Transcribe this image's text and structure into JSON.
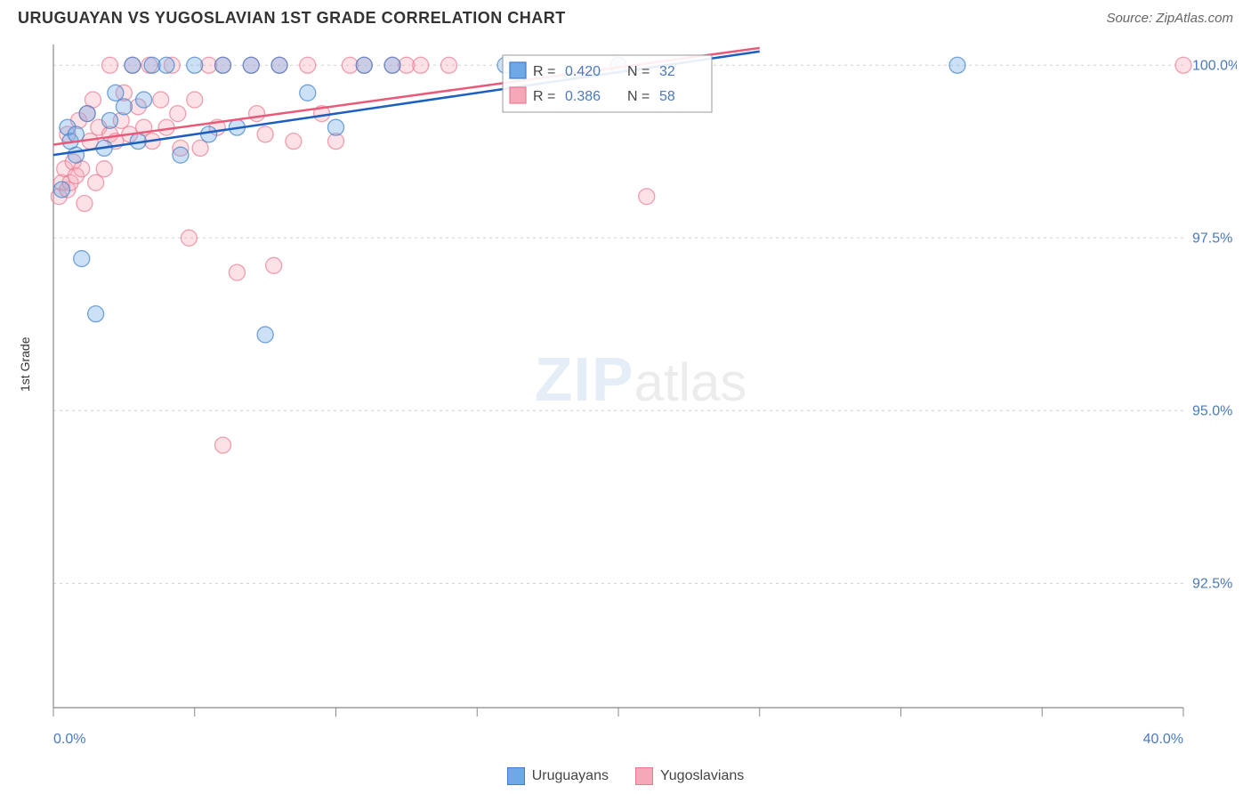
{
  "header": {
    "title": "URUGUAYAN VS YUGOSLAVIAN 1ST GRADE CORRELATION CHART",
    "source": "Source: ZipAtlas.com"
  },
  "chart": {
    "type": "scatter",
    "ylabel": "1st Grade",
    "xlim": [
      0,
      40
    ],
    "ylim": [
      90.7,
      100.3
    ],
    "x_ticks": [
      0,
      5,
      10,
      15,
      20,
      25,
      30,
      35,
      40
    ],
    "x_tick_labels_visible": {
      "0": "0.0%",
      "40": "40.0%"
    },
    "y_ticks": [
      92.5,
      95.0,
      97.5,
      100.0
    ],
    "y_tick_labels": [
      "92.5%",
      "95.0%",
      "97.5%",
      "100.0%"
    ],
    "grid_color": "#d0d0d0",
    "axis_color": "#888888",
    "background_color": "#ffffff",
    "tick_label_color": "#4a7abc",
    "marker_radius": 9,
    "marker_opacity": 0.35,
    "series": [
      {
        "name": "Uruguayans",
        "fill": "#6fa8e6",
        "stroke": "#3d7fc9",
        "line_color": "#1c5fc1",
        "points": [
          [
            0.3,
            98.2
          ],
          [
            0.5,
            99.1
          ],
          [
            0.6,
            98.9
          ],
          [
            0.8,
            98.7
          ],
          [
            0.8,
            99.0
          ],
          [
            1.0,
            97.2
          ],
          [
            1.2,
            99.3
          ],
          [
            1.5,
            96.4
          ],
          [
            1.8,
            98.8
          ],
          [
            2.0,
            99.2
          ],
          [
            2.2,
            99.6
          ],
          [
            2.5,
            99.4
          ],
          [
            2.8,
            100.0
          ],
          [
            3.0,
            98.9
          ],
          [
            3.2,
            99.5
          ],
          [
            3.5,
            100.0
          ],
          [
            4.0,
            100.0
          ],
          [
            4.5,
            98.7
          ],
          [
            5.0,
            100.0
          ],
          [
            5.5,
            99.0
          ],
          [
            6.0,
            100.0
          ],
          [
            6.5,
            99.1
          ],
          [
            7.0,
            100.0
          ],
          [
            7.5,
            96.1
          ],
          [
            8.0,
            100.0
          ],
          [
            9.0,
            99.6
          ],
          [
            10.0,
            99.1
          ],
          [
            11.0,
            100.0
          ],
          [
            12.0,
            100.0
          ],
          [
            16.0,
            100.0
          ],
          [
            20.0,
            100.0
          ],
          [
            32.0,
            100.0
          ]
        ],
        "regression": {
          "x1": 0,
          "y1": 98.7,
          "x2": 25,
          "y2": 100.2
        },
        "r_value": "0.420",
        "n_value": "32"
      },
      {
        "name": "Yugoslavians",
        "fill": "#f5a8b8",
        "stroke": "#e87a92",
        "line_color": "#e85a7a",
        "points": [
          [
            0.2,
            98.1
          ],
          [
            0.3,
            98.3
          ],
          [
            0.4,
            98.5
          ],
          [
            0.5,
            98.2
          ],
          [
            0.5,
            99.0
          ],
          [
            0.6,
            98.3
          ],
          [
            0.7,
            98.6
          ],
          [
            0.8,
            98.4
          ],
          [
            0.9,
            99.2
          ],
          [
            1.0,
            98.5
          ],
          [
            1.1,
            98.0
          ],
          [
            1.2,
            99.3
          ],
          [
            1.3,
            98.9
          ],
          [
            1.4,
            99.5
          ],
          [
            1.5,
            98.3
          ],
          [
            1.6,
            99.1
          ],
          [
            1.8,
            98.5
          ],
          [
            2.0,
            99.0
          ],
          [
            2.0,
            100.0
          ],
          [
            2.2,
            98.9
          ],
          [
            2.4,
            99.2
          ],
          [
            2.5,
            99.6
          ],
          [
            2.7,
            99.0
          ],
          [
            2.8,
            100.0
          ],
          [
            3.0,
            99.4
          ],
          [
            3.2,
            99.1
          ],
          [
            3.4,
            100.0
          ],
          [
            3.5,
            98.9
          ],
          [
            3.8,
            99.5
          ],
          [
            4.0,
            99.1
          ],
          [
            4.2,
            100.0
          ],
          [
            4.4,
            99.3
          ],
          [
            4.5,
            98.8
          ],
          [
            4.8,
            97.5
          ],
          [
            5.0,
            99.5
          ],
          [
            5.2,
            98.8
          ],
          [
            5.5,
            100.0
          ],
          [
            5.8,
            99.1
          ],
          [
            6.0,
            94.5
          ],
          [
            6.0,
            100.0
          ],
          [
            6.5,
            97.0
          ],
          [
            7.0,
            100.0
          ],
          [
            7.2,
            99.3
          ],
          [
            7.5,
            99.0
          ],
          [
            7.8,
            97.1
          ],
          [
            8.0,
            100.0
          ],
          [
            8.5,
            98.9
          ],
          [
            9.0,
            100.0
          ],
          [
            9.5,
            99.3
          ],
          [
            10.0,
            98.9
          ],
          [
            10.5,
            100.0
          ],
          [
            11.0,
            100.0
          ],
          [
            12.0,
            100.0
          ],
          [
            12.5,
            100.0
          ],
          [
            13.0,
            100.0
          ],
          [
            14.0,
            100.0
          ],
          [
            21.0,
            98.1
          ],
          [
            40.0,
            100.0
          ]
        ],
        "regression": {
          "x1": 0,
          "y1": 98.85,
          "x2": 25,
          "y2": 100.25
        },
        "r_value": "0.386",
        "n_value": "58"
      }
    ],
    "stats_box": {
      "r_label": "R =",
      "n_label": "N =",
      "border_color": "#999999",
      "label_color": "#444444",
      "value_color": "#4a7abc"
    },
    "watermark": {
      "zip": "ZIP",
      "atlas": "atlas"
    }
  },
  "legend": {
    "items": [
      {
        "label": "Uruguayans",
        "fill": "#6fa8e6",
        "stroke": "#3d7fc9"
      },
      {
        "label": "Yugoslavians",
        "fill": "#f5a8b8",
        "stroke": "#e87a92"
      }
    ]
  }
}
